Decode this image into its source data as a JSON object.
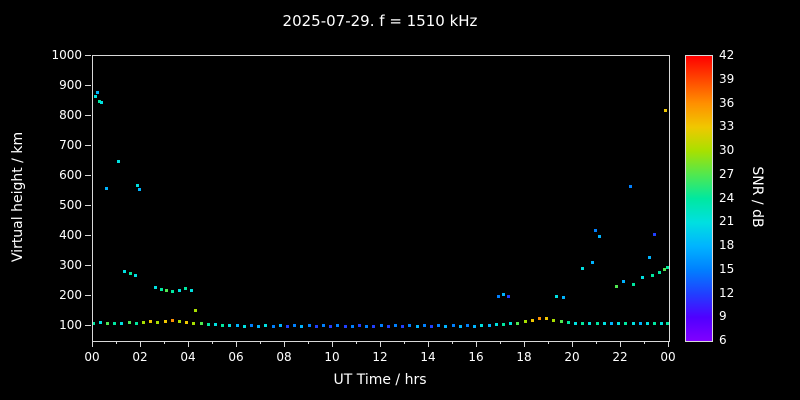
{
  "chart_data": {
    "type": "scatter",
    "title": "2025-07-29. f = 1510 kHz",
    "xlabel": "UT Time / hrs",
    "ylabel": "Virtual height / km",
    "xlim": [
      0,
      24
    ],
    "ylim": [
      50,
      1000
    ],
    "x_tick_values": [
      0,
      2,
      4,
      6,
      8,
      10,
      12,
      14,
      16,
      18,
      20,
      22,
      24
    ],
    "x_tick_labels": [
      "00",
      "02",
      "04",
      "06",
      "08",
      "10",
      "12",
      "14",
      "16",
      "18",
      "20",
      "22",
      "00"
    ],
    "x_minor_tick_values": [
      1,
      3,
      5,
      7,
      9,
      11,
      13,
      15,
      17,
      19,
      21,
      23
    ],
    "y_tick_values": [
      100,
      200,
      300,
      400,
      500,
      600,
      700,
      800,
      900,
      1000
    ],
    "y_tick_labels": [
      "100",
      "200",
      "300",
      "400",
      "500",
      "600",
      "700",
      "800",
      "900",
      "1000"
    ],
    "grid": false,
    "background_color": "#000000",
    "text_color": "#ffffff",
    "colorbar": {
      "label": "SNR / dB",
      "min": 6,
      "max": 42,
      "ticks": [
        42,
        39,
        36,
        33,
        30,
        27,
        24,
        21,
        18,
        15,
        12,
        9,
        6
      ],
      "stops": [
        {
          "value": 6,
          "color": "#8000ff"
        },
        {
          "value": 9,
          "color": "#5000ff"
        },
        {
          "value": 12,
          "color": "#2040ff"
        },
        {
          "value": 15,
          "color": "#0080ff"
        },
        {
          "value": 18,
          "color": "#00b4ff"
        },
        {
          "value": 21,
          "color": "#00e0e0"
        },
        {
          "value": 24,
          "color": "#00e8a0"
        },
        {
          "value": 27,
          "color": "#50e850"
        },
        {
          "value": 30,
          "color": "#a8e000"
        },
        {
          "value": 33,
          "color": "#f0c800"
        },
        {
          "value": 36,
          "color": "#ff9000"
        },
        {
          "value": 39,
          "color": "#ff4800"
        },
        {
          "value": 42,
          "color": "#ff0000"
        }
      ]
    },
    "points_format": [
      "time_hrs",
      "virtual_height_km",
      "snr_db"
    ],
    "points": [
      [
        0.0,
        110,
        24
      ],
      [
        0.3,
        112,
        21
      ],
      [
        0.6,
        110,
        27
      ],
      [
        0.9,
        108,
        24
      ],
      [
        1.2,
        110,
        21
      ],
      [
        1.5,
        112,
        27
      ],
      [
        1.8,
        110,
        24
      ],
      [
        2.1,
        112,
        30
      ],
      [
        2.4,
        115,
        33
      ],
      [
        2.7,
        112,
        30
      ],
      [
        3.0,
        115,
        33
      ],
      [
        3.3,
        118,
        36
      ],
      [
        3.6,
        115,
        30
      ],
      [
        3.9,
        112,
        33
      ],
      [
        4.2,
        110,
        30
      ],
      [
        4.5,
        108,
        27
      ],
      [
        4.8,
        105,
        24
      ],
      [
        5.1,
        105,
        21
      ],
      [
        5.4,
        103,
        24
      ],
      [
        5.7,
        102,
        21
      ],
      [
        6.0,
        102,
        18
      ],
      [
        6.3,
        100,
        21
      ],
      [
        6.6,
        102,
        15
      ],
      [
        6.9,
        100,
        18
      ],
      [
        7.2,
        102,
        21
      ],
      [
        7.5,
        100,
        15
      ],
      [
        7.8,
        102,
        18
      ],
      [
        8.1,
        100,
        12
      ],
      [
        8.4,
        102,
        15
      ],
      [
        8.7,
        100,
        18
      ],
      [
        9.0,
        102,
        15
      ],
      [
        9.3,
        100,
        12
      ],
      [
        9.6,
        102,
        15
      ],
      [
        9.9,
        100,
        12
      ],
      [
        10.2,
        102,
        15
      ],
      [
        10.5,
        100,
        12
      ],
      [
        10.8,
        100,
        15
      ],
      [
        11.1,
        102,
        12
      ],
      [
        11.4,
        100,
        15
      ],
      [
        11.7,
        100,
        12
      ],
      [
        12.0,
        102,
        15
      ],
      [
        12.3,
        100,
        12
      ],
      [
        12.6,
        102,
        15
      ],
      [
        12.9,
        100,
        12
      ],
      [
        13.2,
        102,
        15
      ],
      [
        13.5,
        100,
        18
      ],
      [
        13.8,
        102,
        15
      ],
      [
        14.1,
        100,
        12
      ],
      [
        14.4,
        102,
        15
      ],
      [
        14.7,
        100,
        18
      ],
      [
        15.0,
        102,
        15
      ],
      [
        15.3,
        100,
        18
      ],
      [
        15.6,
        102,
        15
      ],
      [
        15.9,
        100,
        18
      ],
      [
        16.2,
        102,
        21
      ],
      [
        16.5,
        103,
        18
      ],
      [
        16.8,
        105,
        21
      ],
      [
        17.1,
        105,
        24
      ],
      [
        17.4,
        108,
        21
      ],
      [
        17.7,
        110,
        27
      ],
      [
        18.0,
        115,
        30
      ],
      [
        18.3,
        120,
        33
      ],
      [
        18.6,
        125,
        36
      ],
      [
        18.9,
        125,
        33
      ],
      [
        19.2,
        120,
        30
      ],
      [
        19.5,
        115,
        27
      ],
      [
        19.8,
        112,
        24
      ],
      [
        20.1,
        110,
        21
      ],
      [
        20.4,
        110,
        24
      ],
      [
        20.7,
        108,
        21
      ],
      [
        21.0,
        108,
        24
      ],
      [
        21.3,
        110,
        21
      ],
      [
        21.6,
        108,
        18
      ],
      [
        21.9,
        110,
        21
      ],
      [
        22.2,
        108,
        24
      ],
      [
        22.5,
        110,
        21
      ],
      [
        22.8,
        108,
        18
      ],
      [
        23.1,
        110,
        21
      ],
      [
        23.4,
        108,
        24
      ],
      [
        23.7,
        110,
        21
      ],
      [
        23.95,
        110,
        24
      ],
      [
        0.1,
        865,
        21
      ],
      [
        0.2,
        880,
        18
      ],
      [
        0.25,
        850,
        24
      ],
      [
        0.35,
        845,
        21
      ],
      [
        0.55,
        560,
        18
      ],
      [
        1.05,
        650,
        21
      ],
      [
        1.85,
        570,
        21
      ],
      [
        1.95,
        555,
        18
      ],
      [
        1.3,
        282,
        21
      ],
      [
        1.55,
        276,
        24
      ],
      [
        1.75,
        270,
        21
      ],
      [
        2.6,
        228,
        21
      ],
      [
        2.85,
        222,
        24
      ],
      [
        3.05,
        218,
        27
      ],
      [
        3.3,
        215,
        24
      ],
      [
        3.6,
        218,
        21
      ],
      [
        3.85,
        224,
        24
      ],
      [
        4.1,
        220,
        21
      ],
      [
        4.25,
        152,
        30
      ],
      [
        16.9,
        200,
        15
      ],
      [
        17.1,
        206,
        18
      ],
      [
        17.3,
        200,
        12
      ],
      [
        19.3,
        200,
        21
      ],
      [
        19.6,
        195,
        18
      ],
      [
        20.4,
        292,
        21
      ],
      [
        20.8,
        312,
        18
      ],
      [
        20.95,
        420,
        15
      ],
      [
        21.1,
        400,
        18
      ],
      [
        21.8,
        232,
        27
      ],
      [
        22.1,
        250,
        18
      ],
      [
        22.4,
        565,
        15
      ],
      [
        22.5,
        238,
        24
      ],
      [
        22.9,
        262,
        21
      ],
      [
        23.2,
        330,
        18
      ],
      [
        23.3,
        268,
        24
      ],
      [
        23.4,
        405,
        12
      ],
      [
        23.6,
        278,
        24
      ],
      [
        23.8,
        288,
        27
      ],
      [
        23.95,
        295,
        24
      ],
      [
        23.85,
        818,
        33
      ]
    ]
  }
}
